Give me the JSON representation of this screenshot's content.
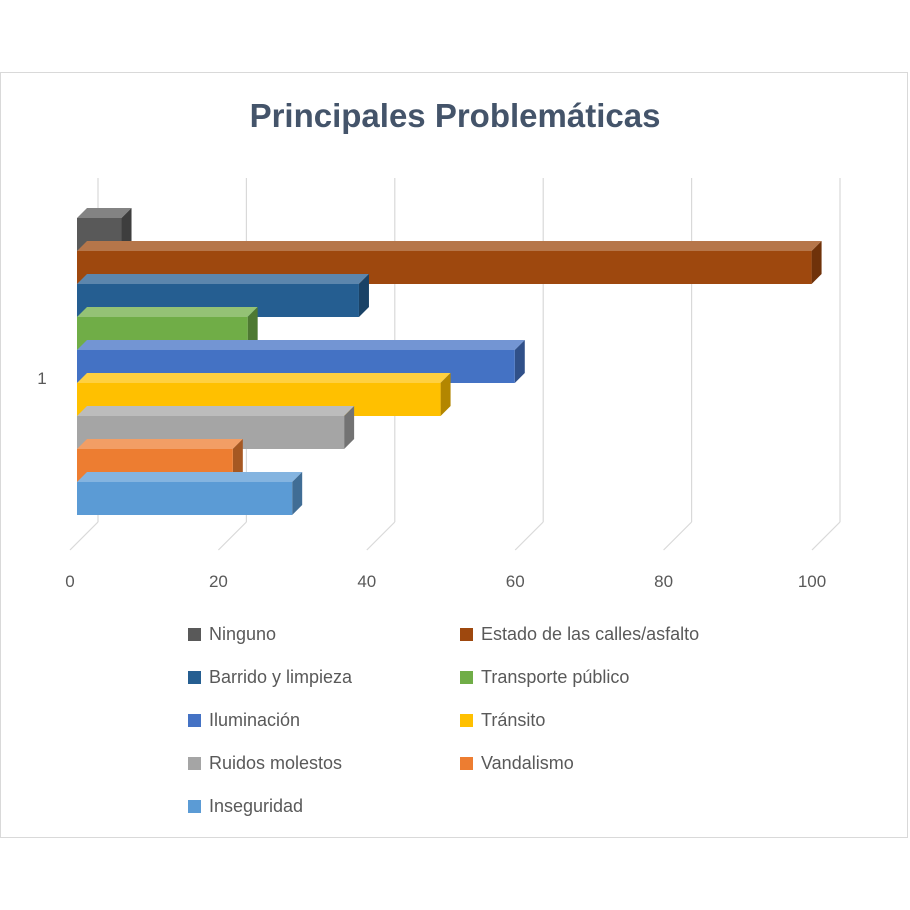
{
  "chart_data": {
    "type": "bar",
    "orientation": "horizontal",
    "style": "3d-clustered",
    "title": "Principales Problemáticas",
    "categories": [
      "1"
    ],
    "xlim": [
      0,
      100
    ],
    "xticks": [
      "0",
      "20",
      "40",
      "60",
      "80",
      "100"
    ],
    "grid": true,
    "legend_position": "bottom",
    "series": [
      {
        "name": "Ninguno",
        "values": [
          6
        ],
        "color": "#595959"
      },
      {
        "name": "Estado de las calles/asfalto",
        "values": [
          99
        ],
        "color": "#9e480e"
      },
      {
        "name": "Barrido y limpieza",
        "values": [
          38
        ],
        "color": "#255e91"
      },
      {
        "name": "Transporte público",
        "values": [
          23
        ],
        "color": "#70ad47"
      },
      {
        "name": "Iluminación",
        "values": [
          59
        ],
        "color": "#4472c4"
      },
      {
        "name": "Tránsito",
        "values": [
          49
        ],
        "color": "#ffc000"
      },
      {
        "name": "Ruidos molestos",
        "values": [
          36
        ],
        "color": "#a5a5a5"
      },
      {
        "name": "Vandalismo",
        "values": [
          21
        ],
        "color": "#ed7d31"
      },
      {
        "name": "Inseguridad",
        "values": [
          29
        ],
        "color": "#5b9bd5"
      }
    ]
  }
}
